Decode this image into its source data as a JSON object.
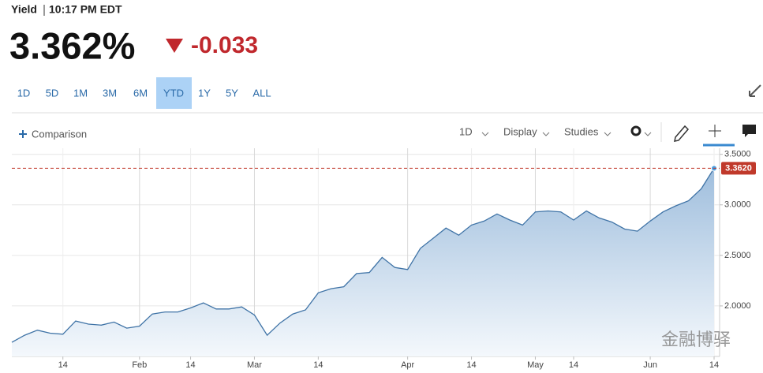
{
  "header": {
    "label": "Yield",
    "time": "10:17 PM EDT",
    "price": "3.362%",
    "change": "-0.033"
  },
  "ranges": {
    "options": [
      "1D",
      "5D",
      "1M",
      "3M",
      "6M",
      "YTD",
      "1Y",
      "5Y",
      "ALL"
    ],
    "selected": "YTD"
  },
  "toolbar": {
    "comparison": "Comparison",
    "interval": "1D",
    "display": "Display",
    "studies": "Studies"
  },
  "watermark": "金融博驿",
  "chart_data": {
    "type": "area",
    "categories": [
      null,
      null,
      null,
      null,
      "14",
      null,
      null,
      null,
      null,
      null,
      "Feb",
      null,
      null,
      null,
      "14",
      null,
      null,
      null,
      null,
      "Mar",
      null,
      null,
      null,
      null,
      "14",
      null,
      null,
      null,
      null,
      null,
      null,
      "Apr",
      null,
      null,
      null,
      null,
      "14",
      null,
      null,
      null,
      null,
      "May",
      null,
      null,
      "14",
      null,
      null,
      null,
      null,
      null,
      "Jun",
      null,
      null,
      null,
      null,
      "14"
    ],
    "values": [
      1.64,
      1.71,
      1.76,
      1.73,
      1.72,
      1.85,
      1.82,
      1.81,
      1.84,
      1.78,
      1.8,
      1.92,
      1.94,
      1.94,
      1.98,
      2.03,
      1.97,
      1.97,
      1.99,
      1.91,
      1.71,
      1.83,
      1.92,
      1.96,
      2.13,
      2.17,
      2.19,
      2.32,
      2.33,
      2.48,
      2.38,
      2.36,
      2.57,
      2.67,
      2.77,
      2.7,
      2.8,
      2.84,
      2.91,
      2.85,
      2.8,
      2.93,
      2.94,
      2.93,
      2.85,
      2.94,
      2.87,
      2.83,
      2.76,
      2.74,
      2.84,
      2.93,
      2.99,
      3.04,
      3.16,
      3.362
    ],
    "color": "#3f73a6",
    "ylim": [
      1.5,
      3.56
    ],
    "yticks": [
      {
        "value": 2.0,
        "label": "2.0000"
      },
      {
        "value": 2.5,
        "label": "2.5000"
      },
      {
        "value": 3.0,
        "label": "3.0000"
      },
      {
        "value": 3.5,
        "label": "3.5000"
      }
    ],
    "grid": true,
    "reference_line": {
      "value": 3.362,
      "label": "3.3620",
      "color": "#c0392b"
    }
  }
}
